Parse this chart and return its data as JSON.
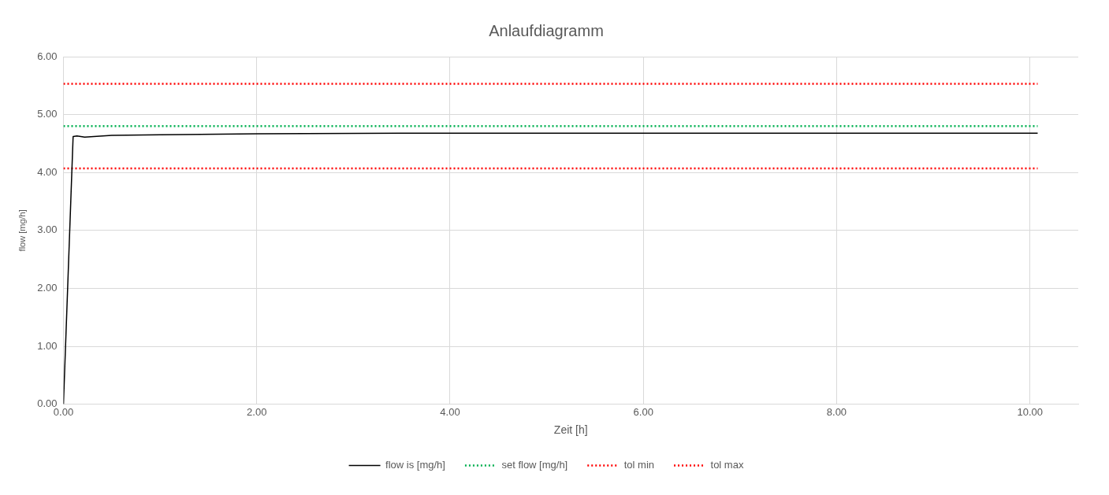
{
  "chart_data": {
    "type": "line",
    "title": "Anlaufdiagramm",
    "xlabel": "Zeit [h]",
    "ylabel": "flow [mg/h]",
    "xlim": [
      0,
      10.5
    ],
    "xticks": [
      {
        "value": 0,
        "label": "0.00"
      },
      {
        "value": 2,
        "label": "2.00"
      },
      {
        "value": 4,
        "label": "4.00"
      },
      {
        "value": 6,
        "label": "6.00"
      },
      {
        "value": 8,
        "label": "8.00"
      },
      {
        "value": 10,
        "label": "10.00"
      }
    ],
    "ylim": [
      0,
      6
    ],
    "yticks": [
      {
        "value": 0,
        "label": "0.00"
      },
      {
        "value": 1,
        "label": "1.00"
      },
      {
        "value": 2,
        "label": "2.00"
      },
      {
        "value": 3,
        "label": "3.00"
      },
      {
        "value": 4,
        "label": "4.00"
      },
      {
        "value": 5,
        "label": "5.00"
      },
      {
        "value": 6,
        "label": "6.00"
      }
    ],
    "grid": true,
    "legend": "bottom",
    "marker": "none",
    "series": [
      {
        "name": "flow is [mg/h]",
        "color": "#000000",
        "line_style": "solid",
        "x": [
          0,
          0.1,
          0.14,
          0.22,
          0.5,
          1,
          2,
          4,
          10.08
        ],
        "values": [
          0,
          4.62,
          4.63,
          4.61,
          4.64,
          4.65,
          4.67,
          4.68,
          4.68
        ]
      },
      {
        "name": "set flow [mg/h]",
        "color": "#00b050",
        "line_style": "dotted",
        "x": [
          0,
          10.08
        ],
        "values": [
          4.8,
          4.8
        ]
      },
      {
        "name": "tol min",
        "color": "#ff0000",
        "line_style": "dotted",
        "x": [
          0,
          10.08
        ],
        "values": [
          4.07,
          4.07
        ]
      },
      {
        "name": "tol max",
        "color": "#ff0000",
        "line_style": "dotted",
        "x": [
          0,
          10.08
        ],
        "values": [
          5.53,
          5.53
        ]
      }
    ]
  }
}
